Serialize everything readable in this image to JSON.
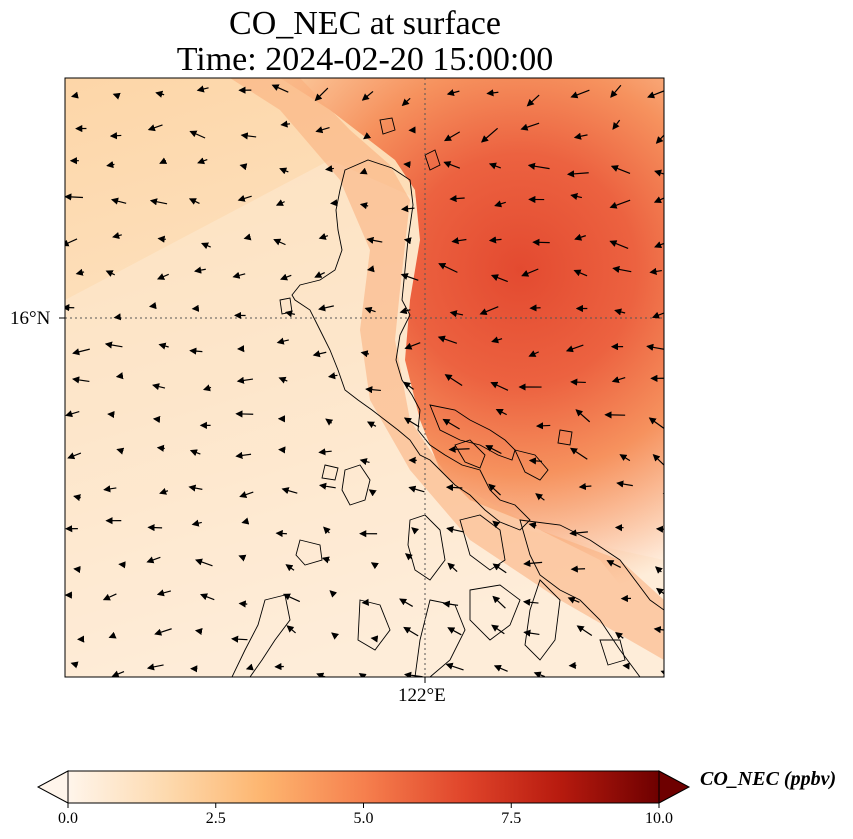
{
  "title": {
    "line1": "CO_NEC at surface",
    "line2": "Time: 2024-02-20 15:00:00"
  },
  "axes": {
    "lat_label": "16°N",
    "lon_label": "122°E"
  },
  "colorbar": {
    "label": "CO_NEC (ppbv)",
    "ticks": [
      "0.0",
      "2.5",
      "5.0",
      "7.5",
      "10.0"
    ],
    "min": 0,
    "max": 10,
    "colors": [
      "#fff5eb",
      "#fdd9ad",
      "#fdb56f",
      "#f6804e",
      "#e0452b",
      "#b81b0f",
      "#6e0000"
    ]
  },
  "map": {
    "field_colors": {
      "low": "#fff3e4",
      "mid": "#fdd2a0",
      "high": "#f2784f",
      "peak": "#e34a30"
    },
    "coastline_color": "#000000",
    "gridline_color": "#555555"
  }
}
